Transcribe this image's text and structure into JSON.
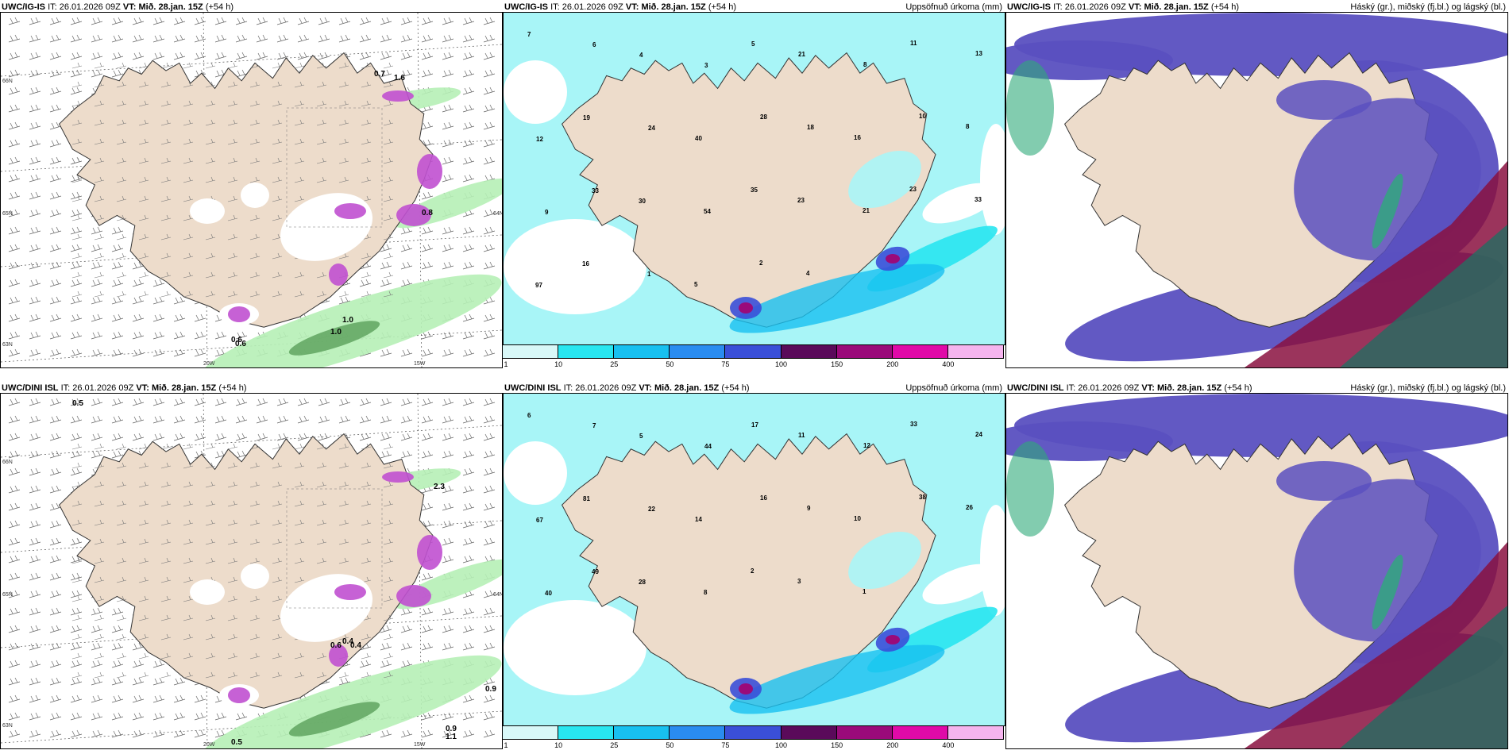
{
  "panels": [
    {
      "id": "p1",
      "model": "UWC/IG-IS",
      "it_label": "IT:",
      "it_value": "26.01.2026 09Z",
      "vt_label": "VT:",
      "vt_value": "Mið. 28.jan. 15Z",
      "lead": "(+54 h)",
      "field": "",
      "type": "wind",
      "values": [
        "0.7",
        "1.6",
        "0.8",
        "0.6",
        "1.0",
        "1.0",
        "0.6"
      ],
      "grid": [
        "66N",
        "65N",
        "64N",
        "63N",
        "20W",
        "15W"
      ]
    },
    {
      "id": "p2",
      "model": "UWC/IG-IS",
      "it_label": "IT:",
      "it_value": "26.01.2026 09Z",
      "vt_label": "VT:",
      "vt_value": "Mið. 28.jan. 15Z",
      "lead": "(+54 h)",
      "field": "Uppsöfnuð úrkoma (mm)",
      "type": "precip",
      "values": [
        "7",
        "6",
        "4",
        "3",
        "5",
        "21",
        "8",
        "11",
        "13",
        "12",
        "19",
        "24",
        "40",
        "28",
        "18",
        "16",
        "10",
        "8",
        "9",
        "33",
        "30",
        "54",
        "35",
        "23",
        "21",
        "23",
        "33",
        "97",
        "16",
        "1",
        "5",
        "2",
        "4"
      ]
    },
    {
      "id": "p3",
      "model": "UWC/IG-IS",
      "it_label": "IT:",
      "it_value": "26.01.2026 09Z",
      "vt_label": "VT:",
      "vt_value": "Mið. 28.jan. 15Z",
      "lead": "(+54 h)",
      "field": "Háský (gr.), miðský (fj.bl.) og lágský (bl.)",
      "type": "cloud"
    },
    {
      "id": "p4",
      "model": "UWC/DINI ISL",
      "it_label": "IT:",
      "it_value": "26.01.2026 09Z",
      "vt_label": "VT:",
      "vt_value": "Mið. 28.jan. 15Z",
      "lead": "(+54 h)",
      "field": "",
      "type": "wind",
      "values": [
        "0.5",
        "0.9",
        "2.3",
        "0.4",
        "0.6",
        "0.4",
        "0.9",
        "1.1",
        "0.5"
      ],
      "grid": [
        "66N",
        "65N",
        "64N",
        "63N",
        "20W",
        "15W"
      ]
    },
    {
      "id": "p5",
      "model": "UWC/DINI ISL",
      "it_label": "IT:",
      "it_value": "26.01.2026 09Z",
      "vt_label": "VT:",
      "vt_value": "Mið. 28.jan. 15Z",
      "lead": "(+54 h)",
      "field": "Uppsöfnuð úrkoma (mm)",
      "type": "precip",
      "values": [
        "6",
        "7",
        "5",
        "44",
        "17",
        "11",
        "12",
        "33",
        "24",
        "67",
        "81",
        "22",
        "14",
        "16",
        "9",
        "10",
        "38",
        "26",
        "40",
        "49",
        "28",
        "8",
        "2",
        "3",
        "1"
      ]
    },
    {
      "id": "p6",
      "model": "UWC/DINI ISL",
      "it_label": "IT:",
      "it_value": "26.01.2026 09Z",
      "vt_label": "VT:",
      "vt_value": "Mið. 28.jan. 15Z",
      "lead": "(+54 h)",
      "field": "Háský (gr.), miðský (fj.bl.) og lágský (bl.)",
      "type": "cloud"
    }
  ],
  "colorbar": {
    "labels": [
      "1",
      "10",
      "25",
      "50",
      "75",
      "100",
      "150",
      "200",
      "400"
    ],
    "colors": [
      "#d8f8f8",
      "#28e6f0",
      "#18c0f0",
      "#2a8cf0",
      "#3a4fd8",
      "#5a0a5a",
      "#9a0a7a",
      "#e00aa8",
      "#f5b4ee"
    ]
  },
  "colors": {
    "land": "#eddccb",
    "sea": "#ffffff",
    "precip_bg": "#a8f5f7",
    "low_cloud": "#5a50c0",
    "mid_cloud": "#2eaa7a",
    "high_cloud": "#8a1040",
    "wind_green": "#b6f0b6",
    "purple": "#c050d0"
  }
}
